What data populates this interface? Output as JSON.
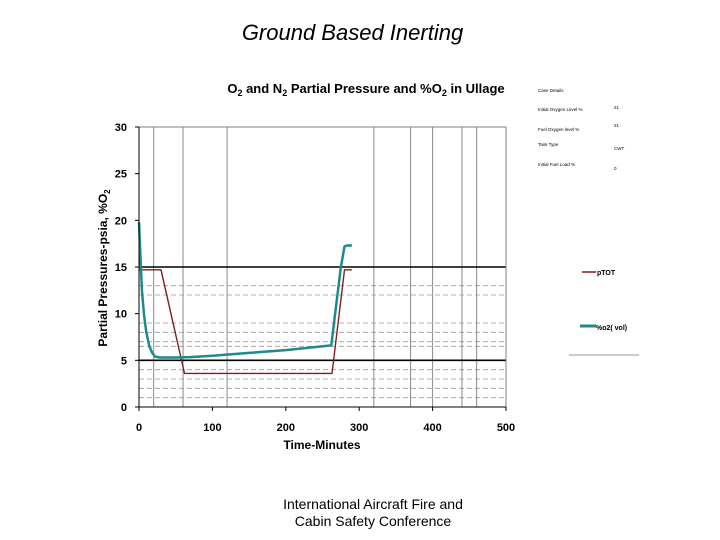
{
  "slide": {
    "title": "Ground Based Inerting",
    "footer_line1": "International Aircraft Fire and",
    "footer_line2": "Cabin Safety Conference"
  },
  "chart_data": {
    "type": "line",
    "title_parts": [
      "O",
      "2",
      " and N",
      "2",
      " Partial Pressure and %O",
      "2",
      " in Ullage"
    ],
    "xlabel": "Time-Minutes",
    "ylabel_parts": [
      "Partial Pressures-psia, %O",
      "2"
    ],
    "xlim": [
      0,
      500
    ],
    "ylim": [
      0,
      30
    ],
    "xticks": [
      0,
      100,
      200,
      300,
      400,
      500
    ],
    "yticks": [
      0,
      5,
      10,
      15,
      20,
      25,
      30
    ],
    "vgrid": [
      20,
      60,
      120,
      320,
      370,
      400,
      440,
      460
    ],
    "solid_hgrid": [
      5,
      15
    ],
    "dashed_hgrid": [
      1,
      2,
      3,
      4,
      6.5,
      7,
      8,
      9,
      12,
      13
    ],
    "series": [
      {
        "name": "pTOT",
        "color": "#7f1f1f",
        "x": [
          0,
          10,
          30,
          62,
          75,
          110,
          200,
          260,
          263,
          280,
          287,
          290
        ],
        "y": [
          14.7,
          14.7,
          14.7,
          3.6,
          3.6,
          3.6,
          3.6,
          3.6,
          3.6,
          14.7,
          14.7,
          14.7
        ]
      },
      {
        "name": "%o2( vol)",
        "color": "#1f8a8a",
        "x": [
          0,
          2,
          4,
          7,
          10,
          14,
          18,
          22,
          28,
          35,
          50,
          70,
          100,
          150,
          200,
          262,
          268,
          275,
          280,
          283,
          290
        ],
        "y": [
          19.8,
          16.0,
          12.5,
          9.8,
          8.0,
          6.5,
          5.8,
          5.4,
          5.3,
          5.3,
          5.3,
          5.35,
          5.5,
          5.8,
          6.1,
          6.6,
          10.5,
          15.0,
          17.2,
          17.3,
          17.3
        ]
      }
    ],
    "legend_position": "right",
    "case_details": {
      "header": "Case Details",
      "rows": [
        {
          "label": "Initial Oxygen Level %",
          "value": "21"
        },
        {
          "label": "Fuel Oxygen level %",
          "value": "21"
        },
        {
          "label": "Tank Type",
          "value": "CWT"
        },
        {
          "label": "Initial Fuel Load %",
          "value": "0"
        }
      ]
    }
  }
}
